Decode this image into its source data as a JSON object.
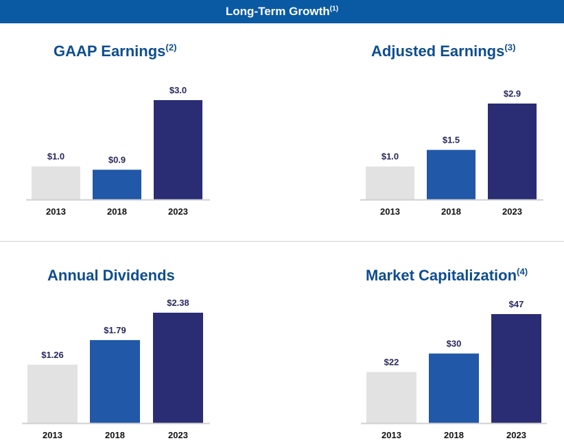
{
  "banner": {
    "title": "Long-Term Growth",
    "note": "(1)"
  },
  "colors": {
    "c2013": "#e2e2e2",
    "c2018": "#2158a8",
    "c2023": "#2a2c74",
    "label": "#27285f",
    "axis": "#d0d0d0",
    "tick": "#111111"
  },
  "chart_data": [
    {
      "type": "bar",
      "title": "GAAP Earnings",
      "note": "(2)",
      "categories": [
        "2013",
        "2018",
        "2023"
      ],
      "values": [
        1.0,
        0.9,
        3.0
      ],
      "labels": [
        "$1.0",
        "$0.9",
        "$3.0"
      ],
      "ylim": [
        0,
        3.0
      ]
    },
    {
      "type": "bar",
      "title": "Adjusted Earnings",
      "note": "(3)",
      "categories": [
        "2013",
        "2018",
        "2023"
      ],
      "values": [
        1.0,
        1.5,
        2.9
      ],
      "labels": [
        "$1.0",
        "$1.5",
        "$2.9"
      ],
      "ylim": [
        0,
        2.9
      ]
    },
    {
      "type": "bar",
      "title": "Annual Dividends",
      "note": "",
      "categories": [
        "2013",
        "2018",
        "2023"
      ],
      "values": [
        1.26,
        1.79,
        2.38
      ],
      "labels": [
        "$1.26",
        "$1.79",
        "$2.38"
      ],
      "ylim": [
        0,
        2.38
      ]
    },
    {
      "type": "bar",
      "title": "Market Capitalization",
      "note": "(4)",
      "categories": [
        "2013",
        "2018",
        "2023"
      ],
      "values": [
        22,
        30,
        47
      ],
      "labels": [
        "$22",
        "$30",
        "$47"
      ],
      "ylim": [
        0,
        47
      ]
    }
  ]
}
